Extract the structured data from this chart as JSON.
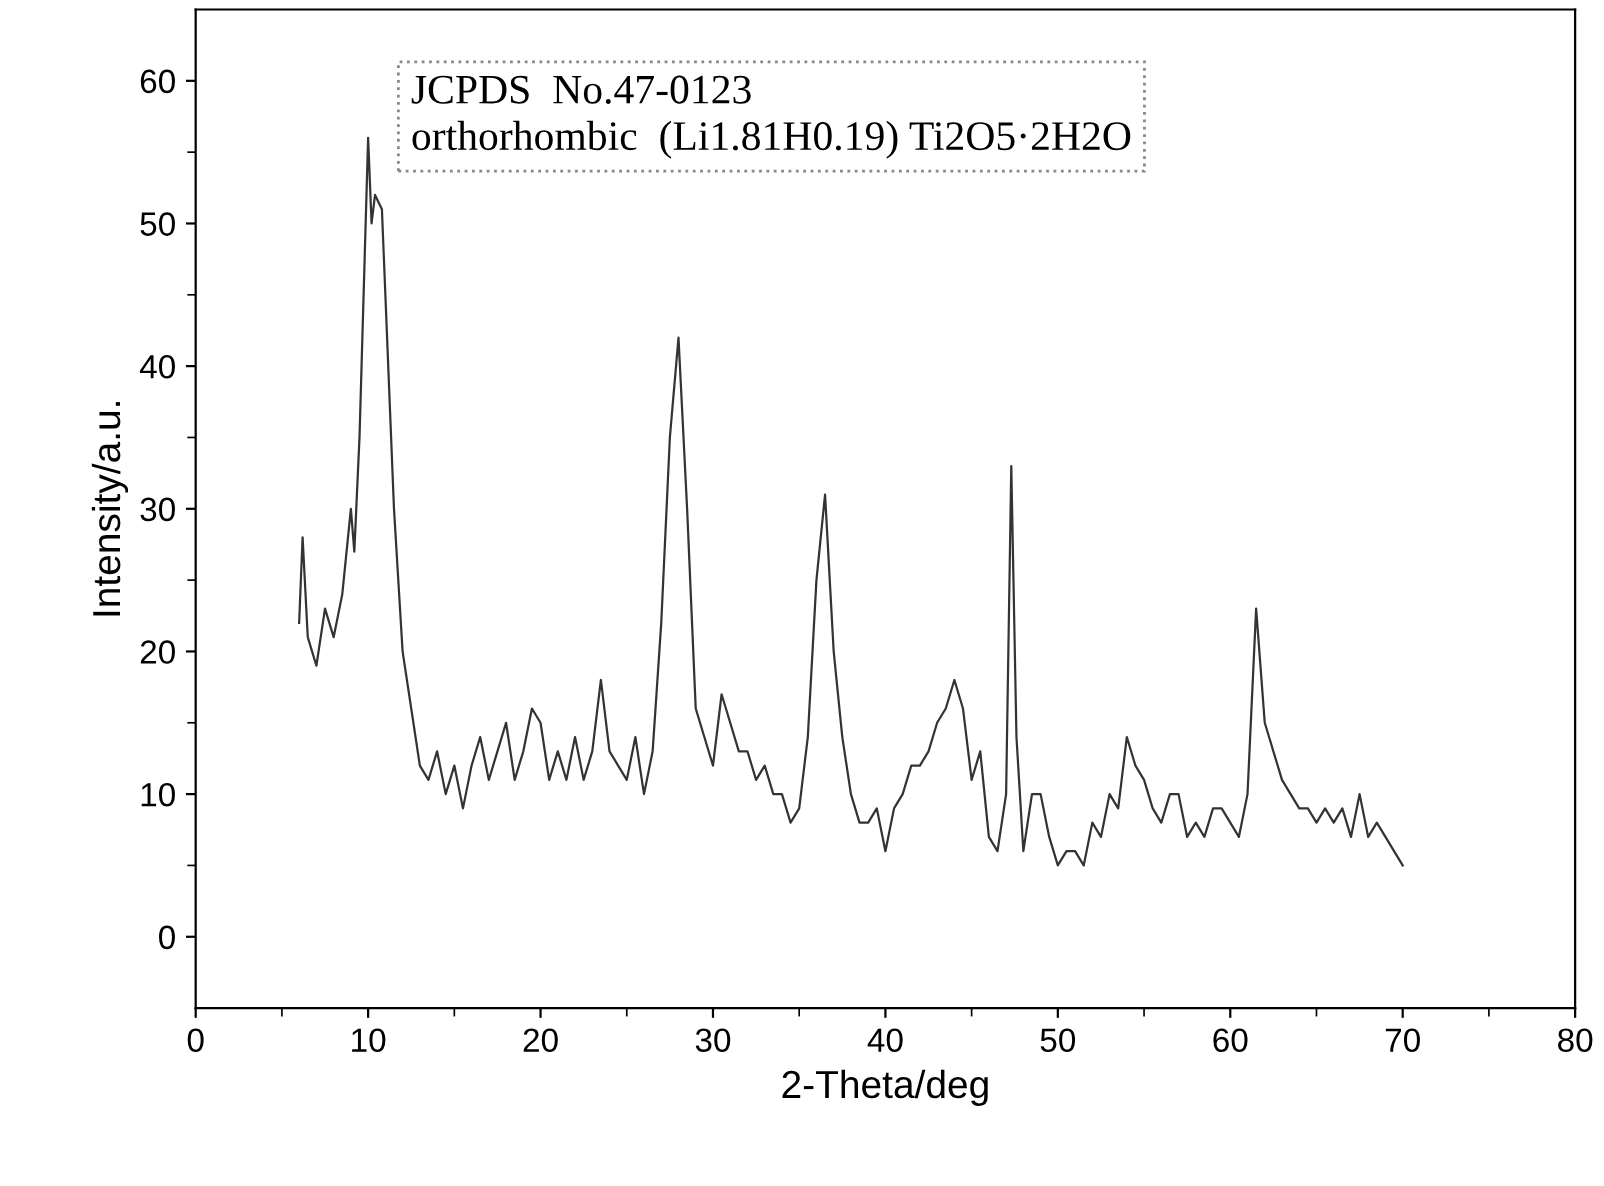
{
  "chart_data": {
    "type": "line",
    "xlabel": "2-Theta/deg",
    "ylabel": "Intensity/a.u.",
    "annotations": [
      "JCPDS  No.47-0123",
      "orthorhombic  (Li1.81H0.19) Ti2O5·2H2O"
    ],
    "xlim": [
      0,
      80
    ],
    "xticks": [
      0,
      10,
      20,
      30,
      40,
      50,
      60,
      70,
      80
    ],
    "ylim": [
      -5,
      65
    ],
    "yticks": [
      0,
      10,
      20,
      30,
      40,
      50,
      60
    ],
    "grid": false,
    "series": [
      {
        "color": "#333333",
        "x": [
          6.0,
          6.2,
          6.5,
          7.0,
          7.5,
          8.0,
          8.5,
          9.0,
          9.2,
          9.5,
          10.0,
          10.2,
          10.4,
          10.8,
          11.0,
          11.5,
          12.0,
          12.5,
          13.0,
          13.5,
          14.0,
          14.5,
          15.0,
          15.5,
          16.0,
          16.5,
          17.0,
          17.5,
          18.0,
          18.5,
          19.0,
          19.5,
          20.0,
          20.5,
          21.0,
          21.5,
          22.0,
          22.5,
          23.0,
          23.5,
          24.0,
          24.5,
          25.0,
          25.5,
          26.0,
          26.5,
          27.0,
          27.5,
          28.0,
          28.5,
          29.0,
          29.5,
          30.0,
          30.5,
          31.0,
          31.5,
          32.0,
          32.5,
          33.0,
          33.5,
          34.0,
          34.5,
          35.0,
          35.5,
          36.0,
          36.5,
          37.0,
          37.5,
          38.0,
          38.5,
          39.0,
          39.5,
          40.0,
          40.5,
          41.0,
          41.5,
          42.0,
          42.5,
          43.0,
          43.5,
          44.0,
          44.5,
          45.0,
          45.5,
          46.0,
          46.5,
          47.0,
          47.3,
          47.6,
          48.0,
          48.5,
          49.0,
          49.5,
          50.0,
          50.5,
          51.0,
          51.5,
          52.0,
          52.5,
          53.0,
          53.5,
          54.0,
          54.5,
          55.0,
          55.5,
          56.0,
          56.5,
          57.0,
          57.5,
          58.0,
          58.5,
          59.0,
          59.5,
          60.0,
          60.5,
          61.0,
          61.5,
          62.0,
          62.5,
          63.0,
          63.5,
          64.0,
          64.5,
          65.0,
          65.5,
          66.0,
          66.5,
          67.0,
          67.5,
          68.0,
          68.5,
          69.0,
          69.5,
          70.0
        ],
        "values": [
          22,
          28,
          21,
          19,
          23,
          21,
          24,
          30,
          27,
          35,
          56,
          50,
          52,
          51,
          45,
          30,
          20,
          16,
          12,
          11,
          13,
          10,
          12,
          9,
          12,
          14,
          11,
          13,
          15,
          11,
          13,
          16,
          15,
          11,
          13,
          11,
          14,
          11,
          13,
          18,
          13,
          12,
          11,
          14,
          10,
          13,
          22,
          35,
          42,
          30,
          16,
          14,
          12,
          17,
          15,
          13,
          13,
          11,
          12,
          10,
          10,
          8,
          9,
          14,
          25,
          31,
          20,
          14,
          10,
          8,
          8,
          9,
          6,
          9,
          10,
          12,
          12,
          13,
          15,
          16,
          18,
          16,
          11,
          13,
          7,
          6,
          10,
          33,
          14,
          6,
          10,
          10,
          7,
          5,
          6,
          6,
          5,
          8,
          7,
          10,
          9,
          14,
          12,
          11,
          9,
          8,
          10,
          10,
          7,
          8,
          7,
          9,
          9,
          8,
          7,
          10,
          23,
          15,
          13,
          11,
          10,
          9,
          9,
          8,
          9,
          8,
          9,
          7,
          10,
          7,
          8,
          7,
          6,
          5
        ]
      }
    ]
  }
}
